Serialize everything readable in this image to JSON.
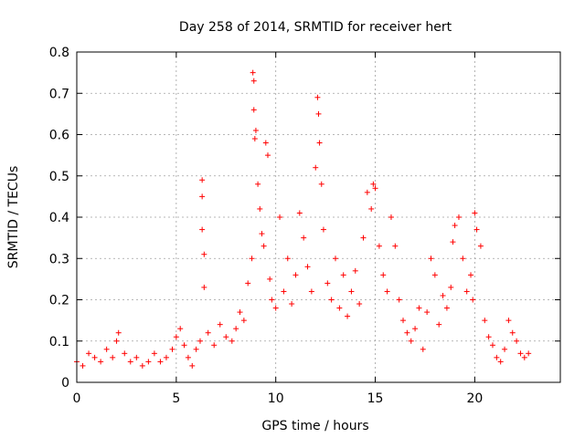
{
  "chart_data": {
    "type": "scatter",
    "title": "Day 258 of 2014, SRMTID for receiver hert",
    "xlabel": "GPS time / hours",
    "ylabel": "SRMTID / TECUs",
    "xlim": [
      0,
      24.3
    ],
    "ylim": [
      0,
      0.8
    ],
    "xticks": [
      0,
      5,
      10,
      15,
      20
    ],
    "xtick_labels": [
      "0",
      "5",
      "10",
      "15",
      "20"
    ],
    "yticks": [
      0,
      0.1,
      0.2,
      0.3,
      0.4,
      0.5,
      0.6,
      0.7,
      0.8
    ],
    "ytick_labels": [
      "0",
      "0.1",
      "0.2",
      "0.3",
      "0.4",
      "0.5",
      "0.6",
      "0.7",
      "0.8"
    ],
    "grid": true,
    "marker": "+",
    "series_color": "#ff0000",
    "series": [
      {
        "name": "SRMTID",
        "x": [
          0.0,
          0.3,
          0.6,
          0.9,
          1.2,
          1.5,
          1.8,
          2.0,
          2.1,
          2.4,
          2.7,
          3.0,
          3.3,
          3.6,
          3.9,
          4.2,
          4.5,
          4.8,
          5.0,
          5.2,
          5.4,
          5.6,
          5.8,
          6.0,
          6.2,
          6.3,
          6.3,
          6.3,
          6.4,
          6.4,
          6.6,
          6.9,
          7.2,
          7.5,
          7.8,
          8.0,
          8.2,
          8.4,
          8.6,
          8.8,
          8.85,
          8.9,
          8.9,
          8.95,
          9.0,
          9.1,
          9.2,
          9.3,
          9.4,
          9.5,
          9.6,
          9.7,
          9.8,
          10.0,
          10.2,
          10.4,
          10.6,
          10.8,
          11.0,
          11.2,
          11.4,
          11.6,
          11.8,
          12.0,
          12.1,
          12.15,
          12.2,
          12.3,
          12.4,
          12.6,
          12.8,
          13.0,
          13.2,
          13.4,
          13.6,
          13.8,
          14.0,
          14.2,
          14.4,
          14.6,
          14.8,
          14.9,
          15.0,
          15.2,
          15.4,
          15.6,
          15.8,
          16.0,
          16.2,
          16.4,
          16.6,
          16.8,
          17.0,
          17.2,
          17.4,
          17.6,
          17.8,
          18.0,
          18.2,
          18.4,
          18.6,
          18.8,
          18.9,
          19.0,
          19.2,
          19.4,
          19.6,
          19.8,
          19.9,
          20.0,
          20.1,
          20.3,
          20.5,
          20.7,
          20.9,
          21.1,
          21.3,
          21.5,
          21.7,
          21.9,
          22.1,
          22.3,
          22.5,
          22.7
        ],
        "y": [
          0.05,
          0.04,
          0.07,
          0.06,
          0.05,
          0.08,
          0.06,
          0.1,
          0.12,
          0.07,
          0.05,
          0.06,
          0.04,
          0.05,
          0.07,
          0.05,
          0.06,
          0.08,
          0.11,
          0.13,
          0.09,
          0.06,
          0.04,
          0.08,
          0.1,
          0.49,
          0.45,
          0.37,
          0.31,
          0.23,
          0.12,
          0.09,
          0.14,
          0.11,
          0.1,
          0.13,
          0.17,
          0.15,
          0.24,
          0.3,
          0.75,
          0.73,
          0.66,
          0.59,
          0.61,
          0.48,
          0.42,
          0.36,
          0.33,
          0.58,
          0.55,
          0.25,
          0.2,
          0.18,
          0.4,
          0.22,
          0.3,
          0.19,
          0.26,
          0.41,
          0.35,
          0.28,
          0.22,
          0.52,
          0.69,
          0.65,
          0.58,
          0.48,
          0.37,
          0.24,
          0.2,
          0.3,
          0.18,
          0.26,
          0.16,
          0.22,
          0.27,
          0.19,
          0.35,
          0.46,
          0.42,
          0.48,
          0.47,
          0.33,
          0.26,
          0.22,
          0.4,
          0.33,
          0.2,
          0.15,
          0.12,
          0.1,
          0.13,
          0.18,
          0.08,
          0.17,
          0.3,
          0.26,
          0.14,
          0.21,
          0.18,
          0.23,
          0.34,
          0.38,
          0.4,
          0.3,
          0.22,
          0.26,
          0.2,
          0.41,
          0.37,
          0.33,
          0.15,
          0.11,
          0.09,
          0.06,
          0.05,
          0.08,
          0.15,
          0.12,
          0.1,
          0.07,
          0.06,
          0.07
        ]
      }
    ]
  }
}
